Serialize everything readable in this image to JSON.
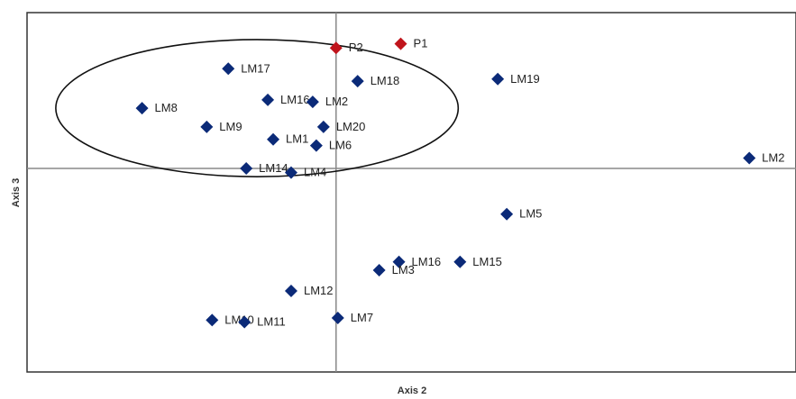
{
  "chart_data": {
    "type": "scatter",
    "title": "",
    "xlabel": "Axis 2",
    "ylabel": "Axis 3",
    "xlim": [
      -8.6,
      12.8
    ],
    "ylim": [
      -4.9,
      3.75
    ],
    "grid": false,
    "legend": "none",
    "colors": {
      "landmark": "#0b2a78",
      "highlight": "#c0141c",
      "axis": "#888888",
      "frame": "#333333",
      "ellipse": "#111111"
    },
    "points": [
      {
        "label": "P1",
        "x": 1.8,
        "y": 3.0,
        "group": "highlight"
      },
      {
        "label": "P2",
        "x": 0.0,
        "y": 2.9,
        "group": "highlight"
      },
      {
        "label": "LM17",
        "x": -3.0,
        "y": 2.4,
        "group": "landmark"
      },
      {
        "label": "LM18",
        "x": 0.6,
        "y": 2.1,
        "group": "landmark"
      },
      {
        "label": "LM19",
        "x": 4.5,
        "y": 2.15,
        "group": "landmark"
      },
      {
        "label": "LM8",
        "x": -5.4,
        "y": 1.45,
        "group": "landmark"
      },
      {
        "label": "LM16",
        "x": -1.9,
        "y": 1.65,
        "group": "landmark"
      },
      {
        "label": "LM2",
        "x": -0.65,
        "y": 1.6,
        "group": "landmark"
      },
      {
        "label": "LM9",
        "x": -3.6,
        "y": 1.0,
        "group": "landmark"
      },
      {
        "label": "LM20",
        "x": -0.35,
        "y": 1.0,
        "group": "landmark"
      },
      {
        "label": "LM1",
        "x": -1.75,
        "y": 0.7,
        "group": "landmark"
      },
      {
        "label": "LM6",
        "x": -0.55,
        "y": 0.55,
        "group": "landmark"
      },
      {
        "label": "LM14",
        "x": -2.5,
        "y": 0.0,
        "group": "landmark"
      },
      {
        "label": "LM4",
        "x": -1.25,
        "y": -0.1,
        "group": "landmark"
      },
      {
        "label": "LM2",
        "x": 11.5,
        "y": 0.25,
        "group": "landmark"
      },
      {
        "label": "LM5",
        "x": 4.75,
        "y": -1.1,
        "group": "landmark"
      },
      {
        "label": "LM16",
        "x": 1.75,
        "y": -2.25,
        "group": "landmark"
      },
      {
        "label": "LM15",
        "x": 3.45,
        "y": -2.25,
        "group": "landmark"
      },
      {
        "label": "LM3",
        "x": 1.2,
        "y": -2.45,
        "group": "landmark"
      },
      {
        "label": "LM12",
        "x": -1.25,
        "y": -2.95,
        "group": "landmark"
      },
      {
        "label": "LM10",
        "x": -3.45,
        "y": -3.65,
        "group": "landmark"
      },
      {
        "label": "LM11",
        "x": -2.55,
        "y": -3.7,
        "group": "landmark"
      },
      {
        "label": "LM7",
        "x": 0.05,
        "y": -3.6,
        "group": "landmark"
      }
    ],
    "enclosure": {
      "cx": -2.2,
      "cy": 1.45,
      "rx": 5.6,
      "ry": 1.65
    }
  }
}
